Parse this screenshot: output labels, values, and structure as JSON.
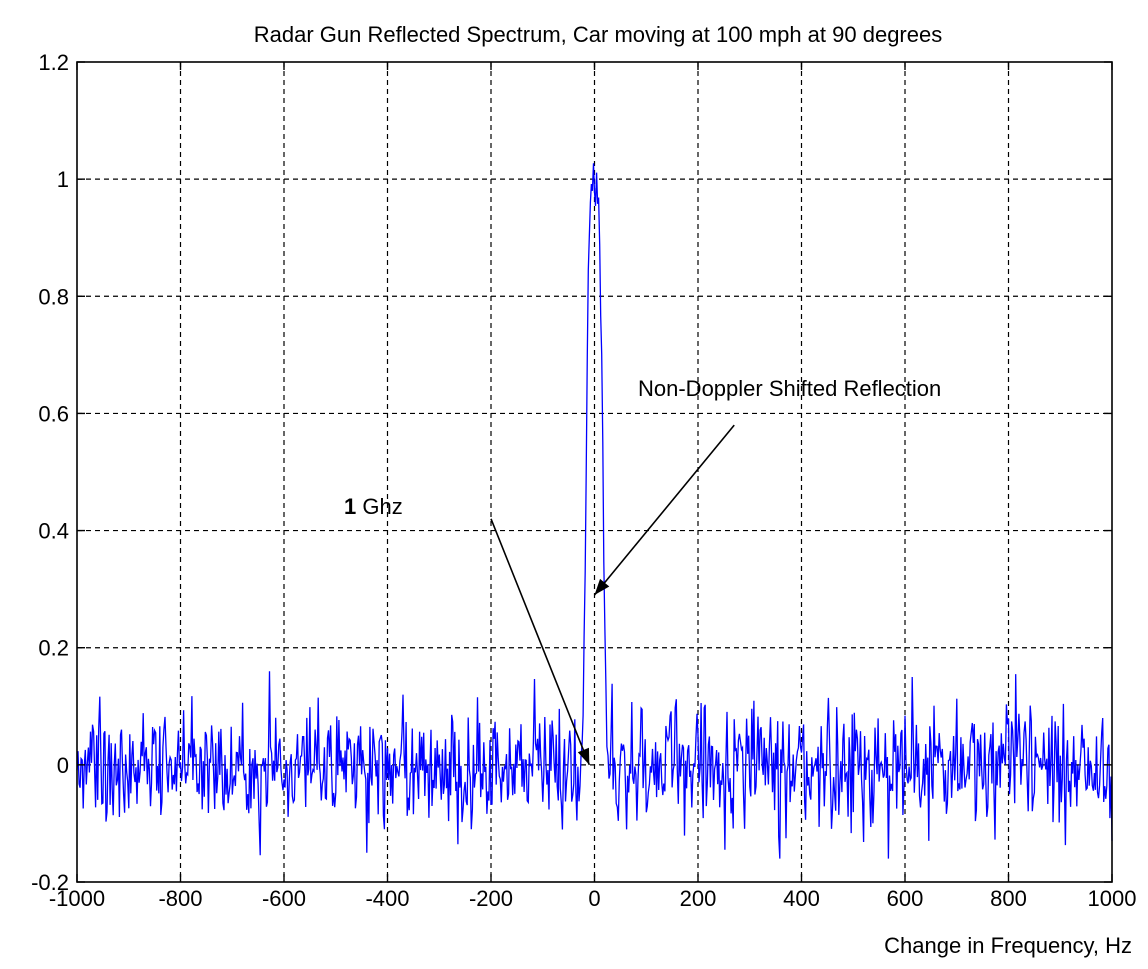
{
  "chart_data": {
    "type": "line",
    "title": "Radar Gun Reflected Spectrum, Car moving at 100 mph at 90 degrees",
    "xlabel": "Change in Frequency, Hz",
    "ylabel": "",
    "xlim": [
      -1000,
      1000
    ],
    "ylim": [
      -0.2,
      1.2
    ],
    "x_ticks": [
      -1000,
      -800,
      -600,
      -400,
      -200,
      0,
      200,
      400,
      600,
      800,
      1000
    ],
    "y_ticks": [
      -0.2,
      0,
      0.2,
      0.4,
      0.6,
      0.8,
      1,
      1.2
    ],
    "x_tick_labels": [
      "-1000",
      "-800",
      "-600",
      "-400",
      "-200",
      "0",
      "200",
      "400",
      "600",
      "800",
      "1000"
    ],
    "y_tick_labels": [
      "-0.2",
      "0",
      "0.2",
      "0.4",
      "0.6",
      "0.8",
      "1",
      "1.2"
    ],
    "grid": true,
    "series": [
      {
        "color": "#0000ff",
        "x_start": -1000,
        "x_step": 2,
        "noise_amplitude": 0.05,
        "peak": {
          "center": 0,
          "height": 0.99,
          "half_width": 25
        },
        "notable_points": [
          {
            "x": -440,
            "y": -0.15
          },
          {
            "x": 615,
            "y": 0.15
          },
          {
            "x": 815,
            "y": 0.155
          },
          {
            "x": 1000,
            "y": -0.13
          }
        ]
      }
    ],
    "annotations": [
      {
        "text_bold": "1",
        "text": " Ghz",
        "arrow_from": [
          -200,
          0.42
        ],
        "arrow_to": [
          -10,
          0.0
        ]
      },
      {
        "text": "Non-Doppler Shifted Reflection",
        "arrow_from": [
          270,
          0.58
        ],
        "arrow_to": [
          0,
          0.29
        ]
      }
    ]
  }
}
